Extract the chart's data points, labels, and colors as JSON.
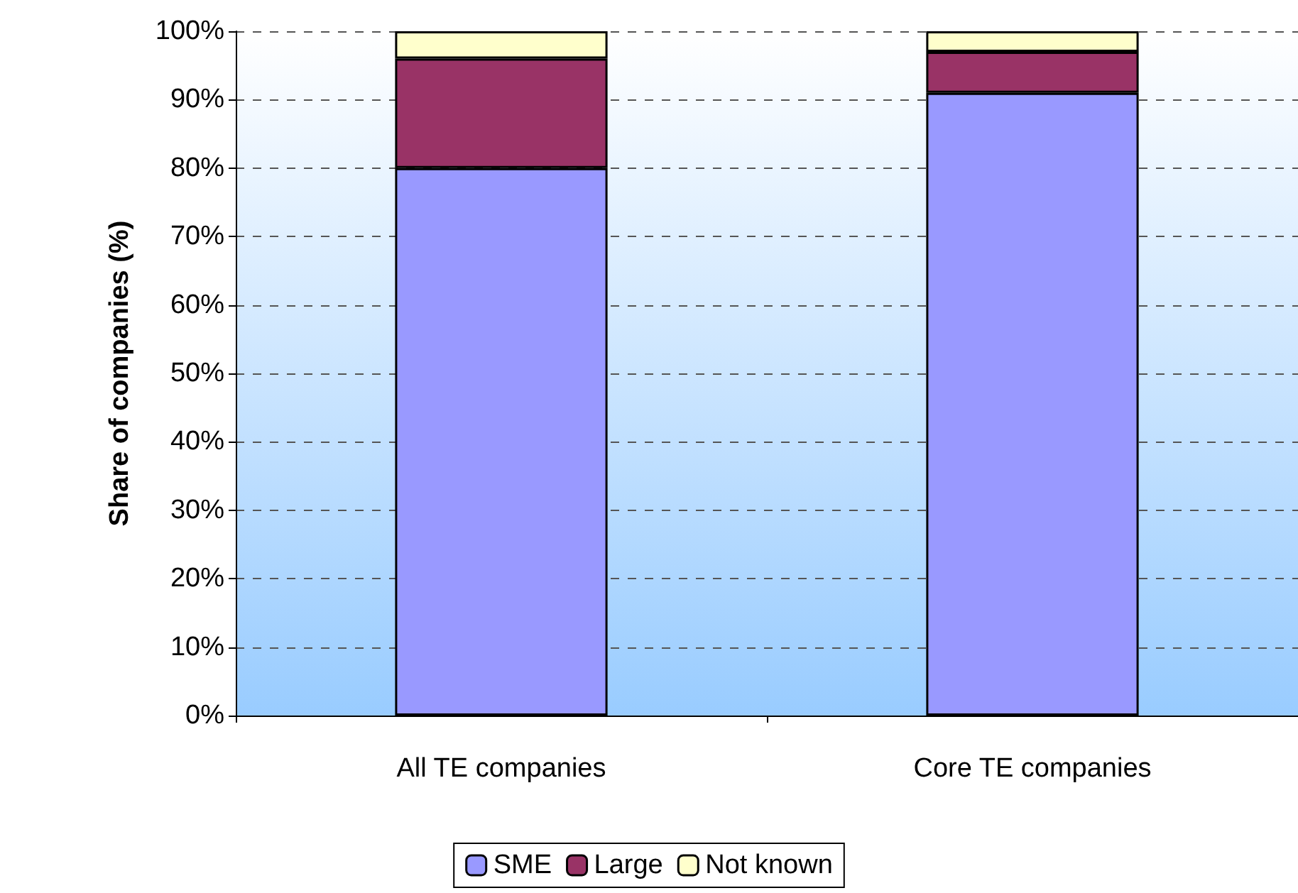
{
  "chart_data": {
    "type": "bar",
    "stacked": true,
    "ylabel": "Share of companies (%)",
    "categories": [
      "All TE companies",
      "Core TE companies"
    ],
    "series": [
      {
        "name": "SME",
        "color": "#9999ff",
        "values": [
          80,
          91
        ]
      },
      {
        "name": "Large",
        "color": "#993366",
        "values": [
          16,
          6
        ]
      },
      {
        "name": "Not known",
        "color": "#ffffcc",
        "values": [
          4,
          3
        ]
      }
    ],
    "ylim": [
      0,
      100
    ],
    "yticks": [
      {
        "value": 0,
        "label": "0%"
      },
      {
        "value": 10,
        "label": "10%"
      },
      {
        "value": 20,
        "label": "20%"
      },
      {
        "value": 30,
        "label": "30%"
      },
      {
        "value": 40,
        "label": "40%"
      },
      {
        "value": 50,
        "label": "50%"
      },
      {
        "value": 60,
        "label": "60%"
      },
      {
        "value": 70,
        "label": "70%"
      },
      {
        "value": 80,
        "label": "80%"
      },
      {
        "value": 90,
        "label": "90%"
      },
      {
        "value": 100,
        "label": "100%"
      }
    ],
    "grid": "y",
    "legend": "bottom"
  }
}
